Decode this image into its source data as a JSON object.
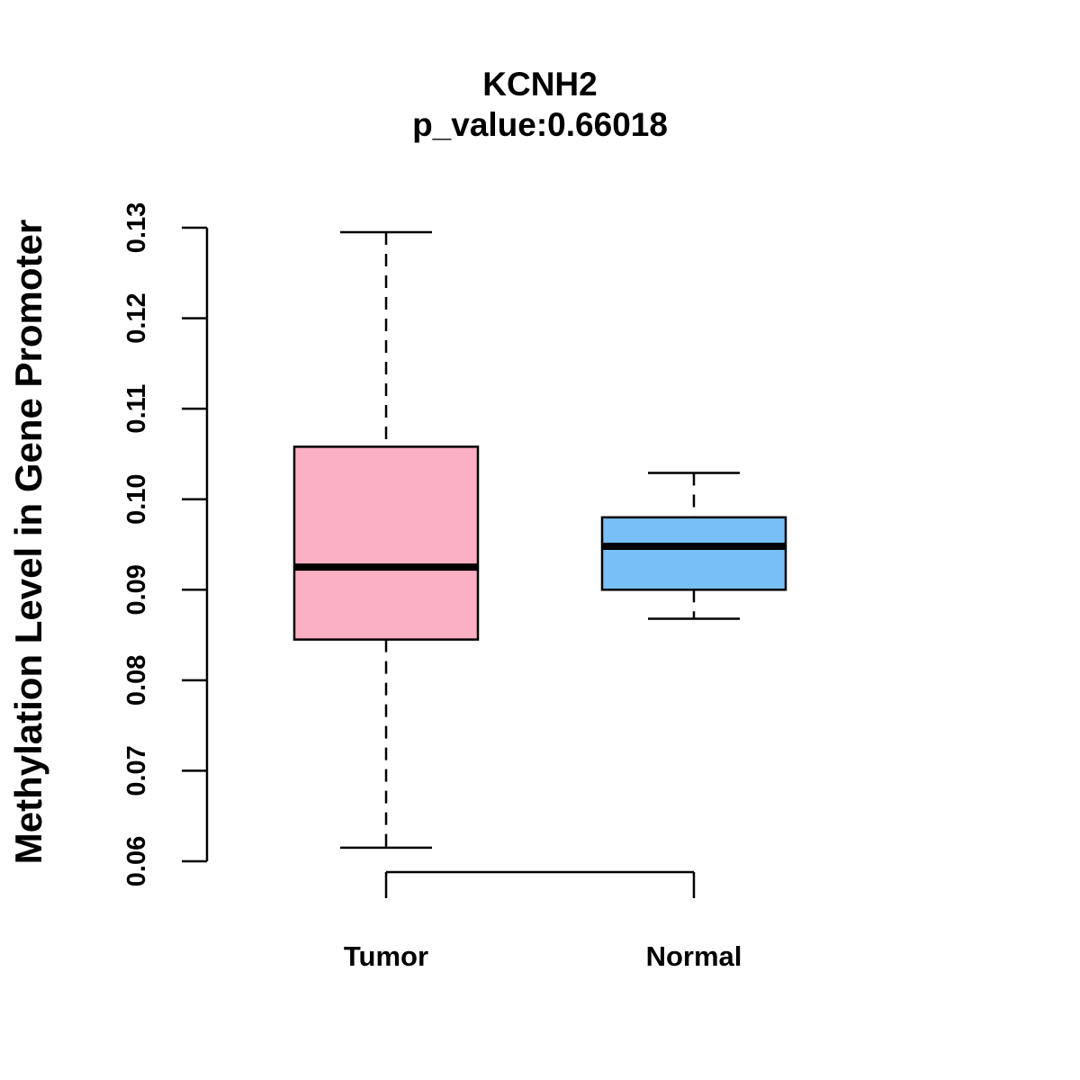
{
  "chart_data": {
    "type": "box",
    "title": "KCNH2",
    "subtitle": "p_value:0.66018",
    "xlabel": "",
    "ylabel": "Methylation Level in Gene Promoter",
    "ylim": [
      0.06,
      0.13
    ],
    "yticks": [
      0.06,
      0.07,
      0.08,
      0.09,
      0.1,
      0.11,
      0.12,
      0.13
    ],
    "ytick_labels": [
      "0.06",
      "0.07",
      "0.08",
      "0.09",
      "0.10",
      "0.11",
      "0.12",
      "0.13"
    ],
    "categories": [
      "Tumor",
      "Normal"
    ],
    "series": [
      {
        "name": "Tumor",
        "color": "#FBB0C3",
        "min": 0.0615,
        "q1": 0.0845,
        "median": 0.0925,
        "q3": 0.1058,
        "max": 0.1295
      },
      {
        "name": "Normal",
        "color": "#77BFF6",
        "min": 0.0868,
        "q1": 0.09,
        "median": 0.0948,
        "q3": 0.098,
        "max": 0.1029
      }
    ],
    "grid": false
  }
}
